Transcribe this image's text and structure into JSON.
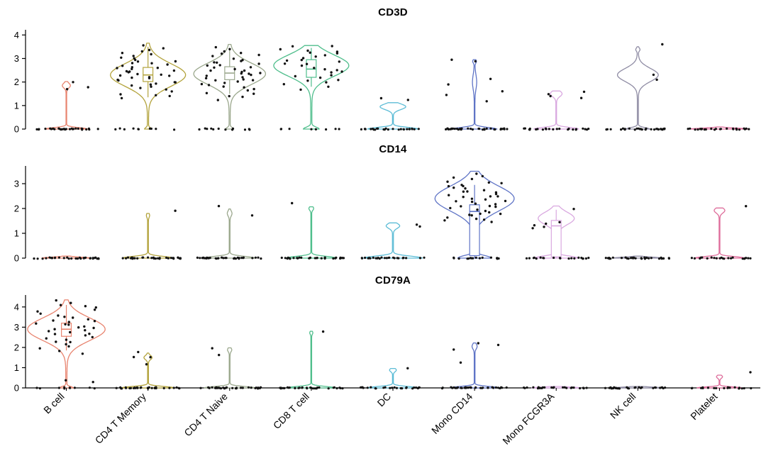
{
  "figure": {
    "background": "#ffffff",
    "axis_color": "#000000",
    "text_color": "#000000",
    "point_color": "#111111"
  },
  "categories": [
    "B cell",
    "CD4 T Memory",
    "CD4 T Naive",
    "CD8 T cell",
    "DC",
    "Mono CD14",
    "Mono FCGR3A",
    "NK cell",
    "Platelet"
  ],
  "palette": {
    "B cell": "#e8836e",
    "CD4 T Memory": "#b3a33c",
    "CD4 T Naive": "#9ba88d",
    "CD8 T cell": "#4fbe8c",
    "DC": "#5cbcd6",
    "Mono CD14": "#5f74c6",
    "Mono FCGR3A": "#d9a8e0",
    "NK cell": "#8f8ca4",
    "Platelet": "#de6d9b"
  },
  "chart_data": [
    {
      "type": "violin",
      "title": "CD3D",
      "xlabel": "",
      "ylabel": "",
      "ylim": [
        0,
        4.1
      ],
      "yticks": [
        0,
        1,
        2,
        3,
        4
      ],
      "violins": [
        {
          "category": "B cell",
          "maxw": 0.52,
          "cut": [
            0,
            2.02
          ],
          "bumps": [
            {
              "mu": 0,
              "s": 0.06,
              "w": 1
            },
            {
              "mu": 1.85,
              "s": 0.1,
              "w": 0.18
            }
          ],
          "box": null,
          "zeros": 30,
          "points": [
            1.7,
            2.0,
            1.78
          ]
        },
        {
          "category": "CD4 T Memory",
          "maxw": 0.92,
          "cut": [
            0,
            3.65
          ],
          "bumps": [
            {
              "mu": 2.3,
              "s": 0.48,
              "w": 1
            },
            {
              "mu": 0,
              "s": 0.06,
              "w": 0.08
            }
          ],
          "box": {
            "lo": 1.35,
            "q1": 2.02,
            "med": 2.3,
            "q3": 2.62,
            "hi": 3.5
          },
          "zeros": 10,
          "points": [
            3.55,
            3.45,
            3.35,
            3.3,
            3.25,
            3.2,
            3.1,
            3.05,
            3.0,
            2.95,
            2.9,
            2.85,
            2.8,
            2.8,
            2.75,
            2.7,
            2.65,
            2.6,
            2.6,
            2.55,
            2.5,
            2.45,
            2.45,
            2.4,
            2.35,
            2.3,
            2.3,
            2.25,
            2.2,
            2.2,
            2.15,
            2.1,
            2.05,
            2.0,
            2.0,
            1.95,
            1.9,
            1.85,
            1.8,
            1.75,
            1.7,
            1.6,
            1.5,
            1.45,
            1.4,
            1.3
          ]
        },
        {
          "category": "CD4 T Naive",
          "maxw": 0.88,
          "cut": [
            0,
            3.6
          ],
          "bumps": [
            {
              "mu": 2.35,
              "s": 0.45,
              "w": 1
            },
            {
              "mu": 0,
              "s": 0.06,
              "w": 0.1
            }
          ],
          "box": {
            "lo": 1.5,
            "q1": 2.1,
            "med": 2.38,
            "q3": 2.65,
            "hi": 3.45
          },
          "zeros": 12,
          "points": [
            3.5,
            3.4,
            3.3,
            3.25,
            3.2,
            3.15,
            3.1,
            3.0,
            2.95,
            2.9,
            2.85,
            2.8,
            2.75,
            2.7,
            2.7,
            2.65,
            2.6,
            2.55,
            2.5,
            2.5,
            2.45,
            2.4,
            2.35,
            2.35,
            2.3,
            2.25,
            2.2,
            2.15,
            2.1,
            2.1,
            2.05,
            2.0,
            1.95,
            1.9,
            1.85,
            1.8,
            1.75,
            1.7,
            1.65,
            1.55,
            1.5,
            1.4,
            1.35,
            1.25
          ]
        },
        {
          "category": "CD8 T cell",
          "maxw": 0.92,
          "cut": [
            0,
            3.55
          ],
          "bumps": [
            {
              "mu": 2.7,
              "s": 0.45,
              "w": 1
            },
            {
              "mu": 0,
              "s": 0.08,
              "w": 0.2
            }
          ],
          "box": {
            "lo": 1.8,
            "q1": 2.2,
            "med": 2.55,
            "q3": 2.95,
            "hi": 3.45
          },
          "zeros": 8,
          "points": [
            3.55,
            3.5,
            3.4,
            3.35,
            3.3,
            3.25,
            3.2,
            3.15,
            3.1,
            3.0,
            2.95,
            2.9,
            2.85,
            2.8,
            2.75,
            2.7,
            2.6,
            2.55,
            2.5,
            2.45,
            2.4,
            2.3,
            2.25,
            2.2,
            2.1,
            2.05,
            2.0,
            1.9,
            1.8,
            1.7
          ]
        },
        {
          "category": "DC",
          "maxw": 0.62,
          "cut": [
            0,
            1.12
          ],
          "bumps": [
            {
              "mu": 0,
              "s": 0.07,
              "w": 1
            },
            {
              "mu": 0.95,
              "s": 0.12,
              "w": 0.5
            }
          ],
          "box": null,
          "zeros": 26,
          "points": [
            1.3,
            1.22
          ]
        },
        {
          "category": "Mono CD14",
          "maxw": 0.55,
          "cut": [
            0,
            2.95
          ],
          "bumps": [
            {
              "mu": 0,
              "s": 0.07,
              "w": 1
            },
            {
              "mu": 2.0,
              "s": 0.3,
              "w": 0.08
            },
            {
              "mu": 2.88,
              "s": 0.07,
              "w": 0.07
            }
          ],
          "box": null,
          "zeros": 34,
          "points": [
            2.95,
            2.88,
            2.12,
            1.9,
            1.62,
            1.45,
            1.2
          ]
        },
        {
          "category": "Mono FCGR3A",
          "maxw": 0.55,
          "cut": [
            0,
            1.62
          ],
          "bumps": [
            {
              "mu": 0,
              "s": 0.07,
              "w": 1
            },
            {
              "mu": 1.5,
              "s": 0.12,
              "w": 0.25
            }
          ],
          "box": null,
          "zeros": 24,
          "points": [
            1.58,
            1.5,
            1.38,
            1.3
          ]
        },
        {
          "category": "NK cell",
          "maxw": 0.5,
          "cut": [
            0,
            3.5
          ],
          "bumps": [
            {
              "mu": 0,
              "s": 0.06,
              "w": 0.35
            },
            {
              "mu": 2.3,
              "s": 0.28,
              "w": 0.6
            },
            {
              "mu": 3.38,
              "s": 0.06,
              "w": 0.05
            }
          ],
          "box": null,
          "zeros": 30,
          "points": [
            3.62,
            2.3,
            2.1
          ]
        },
        {
          "category": "Platelet",
          "maxw": 0.7,
          "cut": [
            0,
            0.09
          ],
          "bumps": [
            {
              "mu": 0,
              "s": 0.04,
              "w": 1
            }
          ],
          "box": null,
          "zeros": 24,
          "points": []
        }
      ]
    },
    {
      "type": "violin",
      "title": "CD14",
      "xlabel": "",
      "ylabel": "",
      "ylim": [
        0,
        3.6
      ],
      "yticks": [
        0,
        1,
        2,
        3
      ],
      "violins": [
        {
          "category": "B cell",
          "maxw": 0.6,
          "cut": [
            0,
            0.08
          ],
          "bumps": [
            {
              "mu": 0,
              "s": 0.04,
              "w": 1
            }
          ],
          "box": null,
          "zeros": 32,
          "points": []
        },
        {
          "category": "CD4 T Memory",
          "maxw": 0.62,
          "cut": [
            0,
            1.8
          ],
          "bumps": [
            {
              "mu": 0,
              "s": 0.07,
              "w": 1
            },
            {
              "mu": 1.72,
              "s": 0.08,
              "w": 0.05
            }
          ],
          "box": null,
          "zeros": 32,
          "points": [
            1.9
          ]
        },
        {
          "category": "CD4 T Naive",
          "maxw": 0.62,
          "cut": [
            0,
            1.98
          ],
          "bumps": [
            {
              "mu": 0,
              "s": 0.07,
              "w": 1
            },
            {
              "mu": 1.8,
              "s": 0.1,
              "w": 0.08
            }
          ],
          "box": null,
          "zeros": 32,
          "points": [
            2.1,
            1.7
          ]
        },
        {
          "category": "CD8 T cell",
          "maxw": 0.62,
          "cut": [
            0,
            2.07
          ],
          "bumps": [
            {
              "mu": 0,
              "s": 0.07,
              "w": 1
            },
            {
              "mu": 2.0,
              "s": 0.07,
              "w": 0.08
            }
          ],
          "box": null,
          "zeros": 30,
          "points": [
            2.2
          ]
        },
        {
          "category": "DC",
          "maxw": 0.72,
          "cut": [
            0,
            1.42
          ],
          "bumps": [
            {
              "mu": 0,
              "s": 0.08,
              "w": 1
            },
            {
              "mu": 1.3,
              "s": 0.1,
              "w": 0.22
            }
          ],
          "box": null,
          "zeros": 26,
          "points": [
            1.35,
            1.27
          ]
        },
        {
          "category": "Mono CD14",
          "maxw": 0.97,
          "cut": [
            0,
            3.5
          ],
          "bumps": [
            {
              "mu": 2.4,
              "s": 0.5,
              "w": 1
            },
            {
              "mu": 0,
              "s": 0.1,
              "w": 0.42
            }
          ],
          "box": {
            "lo": 0,
            "q1": 0.1,
            "med": 1.88,
            "q3": 2.15,
            "hi": 2.95
          },
          "zeros": 16,
          "points": [
            3.4,
            3.3,
            3.25,
            3.2,
            3.1,
            3.05,
            3.0,
            2.95,
            2.9,
            2.9,
            2.85,
            2.8,
            2.75,
            2.7,
            2.7,
            2.65,
            2.6,
            2.55,
            2.5,
            2.5,
            2.45,
            2.4,
            2.35,
            2.3,
            2.3,
            2.25,
            2.2,
            2.15,
            2.1,
            2.1,
            2.05,
            2.0,
            1.95,
            1.9,
            1.85,
            1.8,
            1.8,
            1.75,
            1.7,
            1.65,
            1.6,
            1.55,
            1.5,
            1.45
          ]
        },
        {
          "category": "Mono FCGR3A",
          "maxw": 0.55,
          "cut": [
            0,
            2.1
          ],
          "bumps": [
            {
              "mu": 0,
              "s": 0.08,
              "w": 0.75
            },
            {
              "mu": 1.6,
              "s": 0.25,
              "w": 0.6
            }
          ],
          "box": {
            "lo": 0,
            "q1": 0.05,
            "med": 1.3,
            "q3": 1.52,
            "hi": 1.95
          },
          "zeros": 20,
          "points": [
            2.0,
            1.45,
            1.4,
            1.3,
            1.25,
            1.2
          ]
        },
        {
          "category": "NK cell",
          "maxw": 0.6,
          "cut": [
            0,
            0.08
          ],
          "bumps": [
            {
              "mu": 0,
              "s": 0.04,
              "w": 1
            }
          ],
          "box": null,
          "zeros": 30,
          "points": []
        },
        {
          "category": "Platelet",
          "maxw": 0.62,
          "cut": [
            0,
            2.02
          ],
          "bumps": [
            {
              "mu": 0,
              "s": 0.06,
              "w": 1
            },
            {
              "mu": 1.92,
              "s": 0.1,
              "w": 0.2
            }
          ],
          "box": null,
          "zeros": 22,
          "points": [
            2.1
          ]
        }
      ]
    },
    {
      "type": "violin",
      "title": "CD79A",
      "xlabel": "",
      "ylabel": "",
      "ylim": [
        0,
        4.45
      ],
      "yticks": [
        0,
        1,
        2,
        3,
        4
      ],
      "violins": [
        {
          "category": "B cell",
          "maxw": 0.95,
          "cut": [
            0,
            4.35
          ],
          "bumps": [
            {
              "mu": 2.9,
              "s": 0.55,
              "w": 1
            },
            {
              "mu": 0,
              "s": 0.06,
              "w": 0.18
            }
          ],
          "box": {
            "lo": 1.85,
            "q1": 2.55,
            "med": 2.9,
            "q3": 3.2,
            "hi": 4.1
          },
          "zeros": 10,
          "points": [
            4.3,
            4.2,
            4.1,
            4.05,
            3.95,
            3.85,
            3.75,
            3.65,
            3.6,
            3.5,
            3.45,
            3.4,
            3.35,
            3.3,
            3.25,
            3.2,
            3.15,
            3.1,
            3.05,
            3.0,
            2.95,
            2.9,
            2.85,
            2.8,
            2.75,
            2.7,
            2.65,
            2.6,
            2.5,
            2.45,
            2.4,
            2.3,
            2.25,
            2.15,
            2.05,
            1.95,
            1.85,
            1.7,
            0.35,
            0.3
          ]
        },
        {
          "category": "CD4 T Memory",
          "maxw": 0.65,
          "cut": [
            0,
            1.72
          ],
          "bumps": [
            {
              "mu": 0,
              "s": 0.07,
              "w": 1
            },
            {
              "mu": 1.5,
              "s": 0.1,
              "w": 0.14
            }
          ],
          "box": null,
          "zeros": 30,
          "points": [
            1.75,
            1.55,
            1.5,
            1.15
          ]
        },
        {
          "category": "CD4 T Naive",
          "maxw": 0.62,
          "cut": [
            0,
            1.98
          ],
          "bumps": [
            {
              "mu": 0,
              "s": 0.07,
              "w": 1
            },
            {
              "mu": 1.88,
              "s": 0.09,
              "w": 0.07
            }
          ],
          "box": null,
          "zeros": 32,
          "points": [
            1.95,
            1.6
          ]
        },
        {
          "category": "CD8 T cell",
          "maxw": 0.6,
          "cut": [
            0,
            2.8
          ],
          "bumps": [
            {
              "mu": 0,
              "s": 0.07,
              "w": 1
            },
            {
              "mu": 2.72,
              "s": 0.07,
              "w": 0.05
            }
          ],
          "box": null,
          "zeros": 30,
          "points": [
            2.8
          ]
        },
        {
          "category": "DC",
          "maxw": 0.62,
          "cut": [
            0,
            0.96
          ],
          "bumps": [
            {
              "mu": 0,
              "s": 0.07,
              "w": 1
            },
            {
              "mu": 0.88,
              "s": 0.08,
              "w": 0.12
            }
          ],
          "box": null,
          "zeros": 24,
          "points": [
            0.95
          ]
        },
        {
          "category": "Mono CD14",
          "maxw": 0.6,
          "cut": [
            0,
            2.22
          ],
          "bumps": [
            {
              "mu": 0,
              "s": 0.07,
              "w": 1
            },
            {
              "mu": 2.05,
              "s": 0.12,
              "w": 0.09
            }
          ],
          "box": null,
          "zeros": 34,
          "points": [
            2.2,
            2.1,
            1.9,
            1.25
          ]
        },
        {
          "category": "Mono FCGR3A",
          "maxw": 0.6,
          "cut": [
            0,
            0.07
          ],
          "bumps": [
            {
              "mu": 0,
              "s": 0.04,
              "w": 1
            }
          ],
          "box": null,
          "zeros": 24,
          "points": []
        },
        {
          "category": "NK cell",
          "maxw": 0.6,
          "cut": [
            0,
            0.07
          ],
          "bumps": [
            {
              "mu": 0,
              "s": 0.04,
              "w": 1
            }
          ],
          "box": null,
          "zeros": 28,
          "points": []
        },
        {
          "category": "Platelet",
          "maxw": 0.55,
          "cut": [
            0,
            0.63
          ],
          "bumps": [
            {
              "mu": 0,
              "s": 0.05,
              "w": 1
            },
            {
              "mu": 0.55,
              "s": 0.07,
              "w": 0.12
            }
          ],
          "box": null,
          "zeros": 20,
          "points": [
            0.75
          ]
        }
      ]
    }
  ]
}
